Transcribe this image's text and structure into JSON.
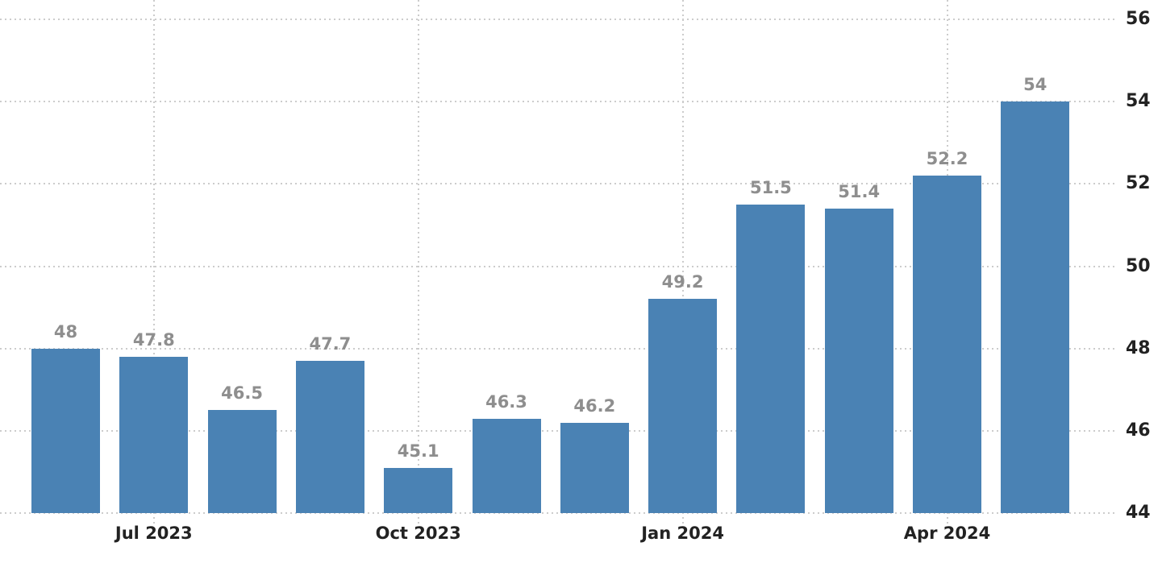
{
  "chart_data": {
    "type": "bar",
    "title": "",
    "xlabel": "",
    "ylabel": "",
    "values": [
      48,
      47.8,
      46.5,
      47.7,
      45.1,
      46.3,
      46.2,
      49.2,
      51.5,
      51.4,
      52.2,
      54
    ],
    "value_labels": [
      "48",
      "47.8",
      "46.5",
      "47.7",
      "45.1",
      "46.3",
      "46.2",
      "49.2",
      "51.5",
      "51.4",
      "52.2",
      "54"
    ],
    "x_ticks": [
      {
        "bar_index": 1,
        "label": "Jul 2023"
      },
      {
        "bar_index": 4,
        "label": "Oct 2023"
      },
      {
        "bar_index": 7,
        "label": "Jan 2024"
      },
      {
        "bar_index": 10,
        "label": "Apr 2024"
      }
    ],
    "y_ticks": [
      44,
      46,
      48,
      50,
      52,
      54,
      56
    ],
    "ylim": [
      44,
      56.5
    ],
    "grid": true,
    "grid_style": "dotted",
    "legend": "none",
    "y_axis_side": "right",
    "bar_color": "#4a82b4"
  },
  "colors": {
    "bar": "#4a82b4",
    "grid": "#cccccc",
    "value_label": "#8e8e8e",
    "axis_label": "#222222",
    "background": "#ffffff"
  }
}
